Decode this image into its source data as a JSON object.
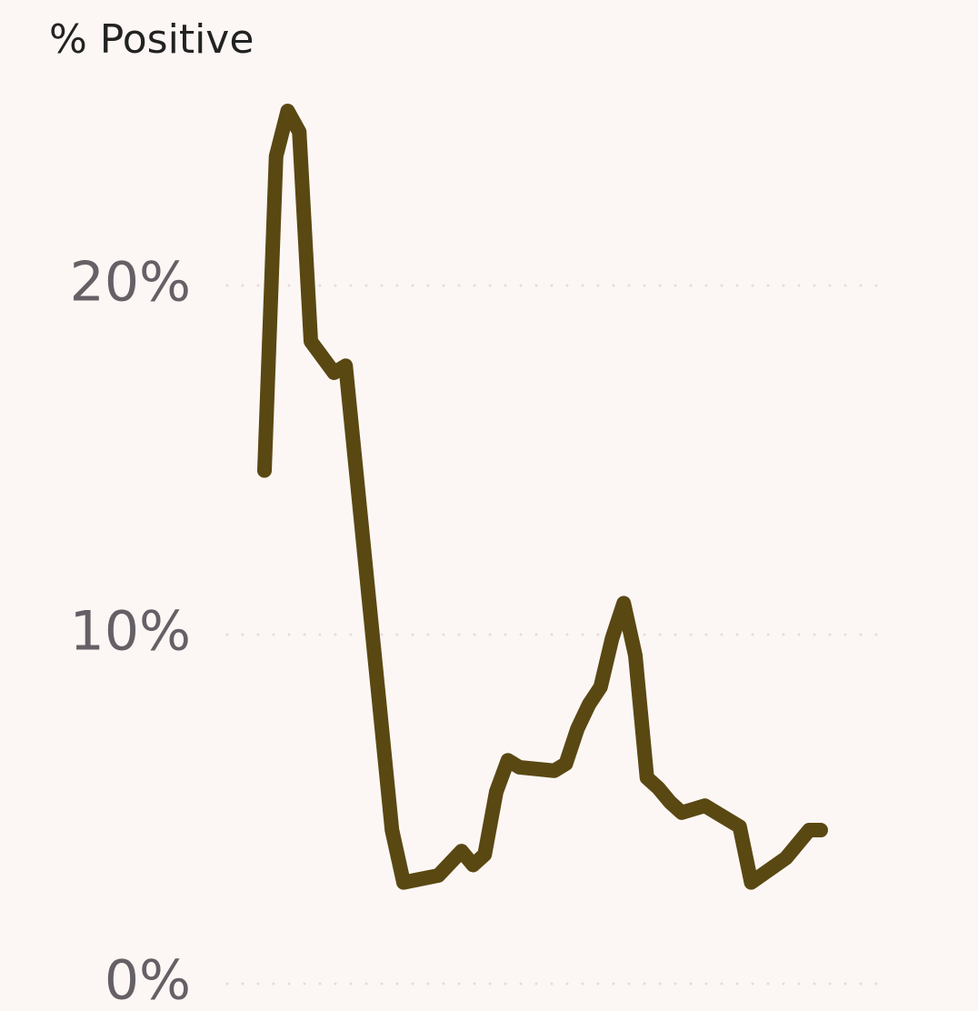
{
  "chart_data": {
    "type": "line",
    "title": "% Positive",
    "x": [
      0,
      1,
      2,
      3,
      4,
      6,
      7,
      11,
      12,
      15,
      17,
      18,
      19,
      20,
      21,
      22,
      25,
      26,
      27,
      28,
      29,
      30,
      31,
      32,
      33,
      34,
      35,
      36,
      37,
      38,
      39,
      41,
      42,
      45,
      47,
      48
    ],
    "series": [
      {
        "name": "% Positive",
        "color": "#5a4813",
        "values": [
          14.7,
          23.7,
          25.0,
          24.4,
          18.4,
          17.5,
          17.7,
          4.4,
          2.9,
          3.1,
          3.8,
          3.4,
          3.7,
          5.5,
          6.4,
          6.2,
          6.1,
          6.3,
          7.3,
          8.0,
          8.5,
          9.9,
          10.9,
          9.4,
          5.9,
          5.6,
          5.2,
          4.9,
          5.0,
          5.1,
          4.9,
          4.5,
          2.9,
          3.6,
          4.4,
          4.4
        ]
      }
    ],
    "xlim": [
      0,
      48
    ],
    "ylim": [
      0,
      20
    ],
    "yticks": [
      {
        "value": 0,
        "label": "0%"
      },
      {
        "value": 10,
        "label": "10%"
      },
      {
        "value": 20,
        "label": "20%"
      }
    ],
    "grid": true
  }
}
